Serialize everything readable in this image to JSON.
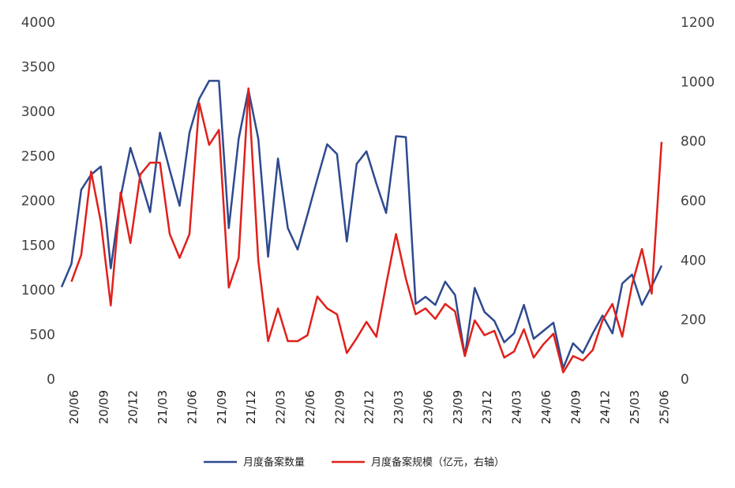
{
  "chart_data": {
    "type": "line",
    "categories": [
      null,
      "20/06",
      null,
      null,
      "20/09",
      null,
      null,
      "20/12",
      null,
      null,
      "21/03",
      null,
      null,
      "21/06",
      null,
      null,
      "21/09",
      null,
      null,
      "21/12",
      null,
      null,
      "22/03",
      null,
      null,
      "22/06",
      null,
      null,
      "22/09",
      null,
      null,
      "22/12",
      null,
      null,
      "23/03",
      null,
      null,
      "23/06",
      null,
      null,
      "23/09",
      null,
      null,
      "23/12",
      null,
      null,
      "24/03",
      null,
      null,
      "24/06",
      null,
      null,
      "24/09",
      null,
      null,
      "24/12",
      null,
      null,
      "25/03",
      null,
      null,
      "25/06"
    ],
    "series": [
      {
        "name": "月度备案数量",
        "color": "#2e4a8f",
        "values": [
          1040,
          1300,
          2130,
          2300,
          2390,
          1250,
          2050,
          2600,
          2250,
          1880,
          2770,
          2350,
          1950,
          2770,
          3150,
          3350,
          3350,
          1700,
          2700,
          3250,
          2700,
          1380,
          2480,
          1700,
          1460,
          1850,
          2250,
          2640,
          2530,
          1550,
          2420,
          2560,
          2200,
          1870,
          2730,
          2720,
          850,
          930,
          840,
          1100,
          950,
          270,
          1030,
          760,
          660,
          420,
          520,
          840,
          460,
          550,
          640,
          130,
          410,
          300,
          520,
          720,
          520,
          1080,
          1180,
          840,
          1050,
          1280
        ]
      },
      {
        "name": "月度备案规模（亿元，右轴）",
        "color": "#e0201b",
        "axis": "y2",
        "values": [
          null,
          330,
          420,
          700,
          530,
          250,
          630,
          460,
          690,
          730,
          730,
          490,
          410,
          490,
          930,
          790,
          840,
          310,
          410,
          980,
          400,
          130,
          240,
          130,
          130,
          150,
          280,
          240,
          220,
          90,
          140,
          195,
          145,
          320,
          490,
          340,
          220,
          240,
          205,
          255,
          230,
          80,
          200,
          150,
          165,
          75,
          95,
          170,
          75,
          120,
          155,
          25,
          80,
          65,
          100,
          200,
          255,
          145,
          320,
          440,
          290,
          800
        ]
      }
    ],
    "ylim": [
      0,
      4000
    ],
    "yticks": [
      0,
      500,
      1000,
      1500,
      2000,
      2500,
      3000,
      3500,
      4000
    ],
    "y2lim": [
      0,
      1200
    ],
    "y2ticks": [
      0,
      200,
      400,
      600,
      800,
      1000,
      1200
    ],
    "grid": false,
    "legend": "bottom"
  }
}
